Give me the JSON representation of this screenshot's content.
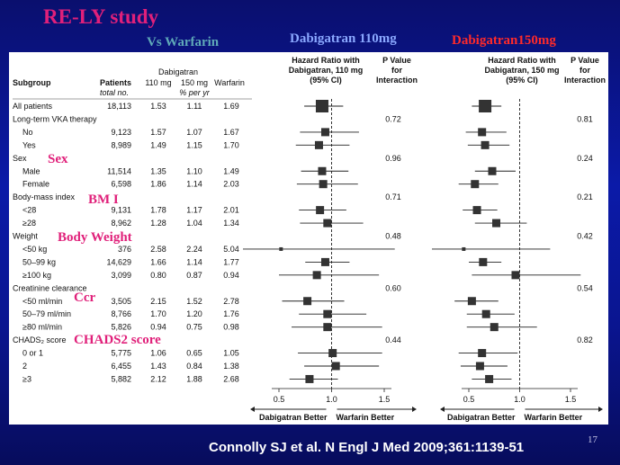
{
  "slide": {
    "title": "RE-LY study",
    "subtitle": "Vs Warfarin",
    "dose110_heading": "Dabigatran 110mg",
    "dose150_heading": "Dabigatran150mg",
    "citation": "Connolly SJ et al. N Engl J Med 2009;361:1139-51",
    "page_number": "17"
  },
  "colors": {
    "background": "#0b1aa8",
    "title": "#e0207a",
    "subtitle": "#5fa9b8",
    "dose110": "#8aa8ff",
    "dose150": "#ff2a2a"
  },
  "annotations": [
    "Sex",
    "BM I",
    "Body Weight",
    "Ccr",
    "CHADS2 score"
  ],
  "table": {
    "headers": {
      "subgroup": "Subgroup",
      "patients": "Patients",
      "total_no": "total no.",
      "dabigatran": "Dabigatran",
      "d110": "110 mg",
      "d150": "150 mg",
      "pct_per_yr": "% per yr",
      "warfarin": "Warfarin",
      "hr110": [
        "Hazard Ratio with",
        "Dabigatran, 110 mg",
        "(95% CI)"
      ],
      "p110": [
        "P Value",
        "for",
        "Interaction"
      ],
      "hr150": [
        "Hazard Ratio with",
        "Dabigatran, 150 mg",
        "(95% CI)"
      ],
      "p150": [
        "P Value",
        "for",
        "Interaction"
      ]
    },
    "rows": [
      {
        "label": "All patients",
        "indent": false,
        "patients": "18,113",
        "d110": "1.53",
        "d150": "1.11",
        "warfarin": "1.69"
      },
      {
        "label": "Long-term VKA therapy",
        "indent": false,
        "p110": "0.72",
        "p150": "0.81"
      },
      {
        "label": "No",
        "indent": true,
        "patients": "9,123",
        "d110": "1.57",
        "d150": "1.07",
        "warfarin": "1.67"
      },
      {
        "label": "Yes",
        "indent": true,
        "patients": "8,989",
        "d110": "1.49",
        "d150": "1.15",
        "warfarin": "1.70"
      },
      {
        "label": "Sex",
        "indent": false,
        "p110": "0.96",
        "p150": "0.24"
      },
      {
        "label": "Male",
        "indent": true,
        "patients": "11,514",
        "d110": "1.35",
        "d150": "1.10",
        "warfarin": "1.49"
      },
      {
        "label": "Female",
        "indent": true,
        "patients": "6,598",
        "d110": "1.86",
        "d150": "1.14",
        "warfarin": "2.03"
      },
      {
        "label": "Body-mass index",
        "indent": false,
        "p110": "0.71",
        "p150": "0.21"
      },
      {
        "label": "<28",
        "indent": true,
        "patients": "9,131",
        "d110": "1.78",
        "d150": "1.17",
        "warfarin": "2.01"
      },
      {
        "label": "≥28",
        "indent": true,
        "patients": "8,962",
        "d110": "1.28",
        "d150": "1.04",
        "warfarin": "1.34"
      },
      {
        "label": "Weight",
        "indent": false,
        "p110": "0.48",
        "p150": "0.42"
      },
      {
        "label": "<50 kg",
        "indent": true,
        "patients": "376",
        "d110": "2.58",
        "d150": "2.24",
        "warfarin": "5.04"
      },
      {
        "label": "50–99 kg",
        "indent": true,
        "patients": "14,629",
        "d110": "1.66",
        "d150": "1.14",
        "warfarin": "1.77"
      },
      {
        "label": "≥100 kg",
        "indent": true,
        "patients": "3,099",
        "d110": "0.80",
        "d150": "0.87",
        "warfarin": "0.94"
      },
      {
        "label": "Creatinine clearance",
        "indent": false,
        "p110": "0.60",
        "p150": "0.54"
      },
      {
        "label": "<50 ml/min",
        "indent": true,
        "patients": "3,505",
        "d110": "2.15",
        "d150": "1.52",
        "warfarin": "2.78"
      },
      {
        "label": "50–79 ml/min",
        "indent": true,
        "patients": "8,766",
        "d110": "1.70",
        "d150": "1.20",
        "warfarin": "1.76"
      },
      {
        "label": "≥80 ml/min",
        "indent": true,
        "patients": "5,826",
        "d110": "0.94",
        "d150": "0.75",
        "warfarin": "0.98"
      },
      {
        "label": "CHADS₂ score",
        "indent": false,
        "p110": "0.44",
        "p150": "0.82"
      },
      {
        "label": "0 or 1",
        "indent": true,
        "patients": "5,775",
        "d110": "1.06",
        "d150": "0.65",
        "warfarin": "1.05"
      },
      {
        "label": "2",
        "indent": true,
        "patients": "6,455",
        "d110": "1.43",
        "d150": "0.84",
        "warfarin": "1.38"
      },
      {
        "label": "≥3",
        "indent": true,
        "patients": "5,882",
        "d110": "2.12",
        "d150": "1.88",
        "warfarin": "2.68"
      }
    ]
  },
  "chart_data": [
    {
      "type": "scatter",
      "title": "Hazard Ratio with Dabigatran, 110 mg (95% CI)",
      "xlabel_left": "Dabigatran Better",
      "xlabel_right": "Warfarin Better",
      "xlim": [
        0.4,
        1.6
      ],
      "xticks": [
        0.5,
        1.0,
        1.5
      ],
      "xtick_labels": [
        "0.5",
        "1.0",
        "1.5"
      ],
      "reference_line": 1.0,
      "points": [
        {
          "row": 0,
          "hr": 0.91,
          "lo": 0.74,
          "hi": 1.11,
          "size": "large"
        },
        {
          "row": 2,
          "hr": 0.94,
          "lo": 0.7,
          "hi": 1.26,
          "size": "medium"
        },
        {
          "row": 3,
          "hr": 0.88,
          "lo": 0.66,
          "hi": 1.17,
          "size": "medium"
        },
        {
          "row": 5,
          "hr": 0.91,
          "lo": 0.71,
          "hi": 1.16,
          "size": "medium"
        },
        {
          "row": 6,
          "hr": 0.92,
          "lo": 0.67,
          "hi": 1.25,
          "size": "medium"
        },
        {
          "row": 8,
          "hr": 0.89,
          "lo": 0.69,
          "hi": 1.14,
          "size": "medium"
        },
        {
          "row": 9,
          "hr": 0.96,
          "lo": 0.7,
          "hi": 1.3,
          "size": "medium"
        },
        {
          "row": 11,
          "hr": 0.52,
          "lo": 0.1,
          "hi": 1.6,
          "size": "small"
        },
        {
          "row": 12,
          "hr": 0.94,
          "lo": 0.75,
          "hi": 1.17,
          "size": "medium"
        },
        {
          "row": 13,
          "hr": 0.86,
          "lo": 0.5,
          "hi": 1.45,
          "size": "medium"
        },
        {
          "row": 15,
          "hr": 0.77,
          "lo": 0.53,
          "hi": 1.12,
          "size": "medium"
        },
        {
          "row": 16,
          "hr": 0.96,
          "lo": 0.69,
          "hi": 1.33,
          "size": "medium"
        },
        {
          "row": 17,
          "hr": 0.96,
          "lo": 0.62,
          "hi": 1.48,
          "size": "medium"
        },
        {
          "row": 19,
          "hr": 1.01,
          "lo": 0.68,
          "hi": 1.48,
          "size": "medium"
        },
        {
          "row": 20,
          "hr": 1.04,
          "lo": 0.74,
          "hi": 1.45,
          "size": "medium"
        },
        {
          "row": 21,
          "hr": 0.79,
          "lo": 0.6,
          "hi": 1.06,
          "size": "medium"
        }
      ]
    },
    {
      "type": "scatter",
      "title": "Hazard Ratio with Dabigatran, 150 mg (95% CI)",
      "xlabel_left": "Dabigatran Better",
      "xlabel_right": "Warfarin Better",
      "xlim": [
        0.4,
        1.6
      ],
      "xticks": [
        0.5,
        1.0,
        1.5
      ],
      "xtick_labels": [
        "0.5",
        "1.0",
        "1.5"
      ],
      "reference_line": 1.0,
      "points": [
        {
          "row": 0,
          "hr": 0.66,
          "lo": 0.53,
          "hi": 0.82,
          "size": "large"
        },
        {
          "row": 2,
          "hr": 0.63,
          "lo": 0.47,
          "hi": 0.87,
          "size": "medium"
        },
        {
          "row": 3,
          "hr": 0.66,
          "lo": 0.49,
          "hi": 0.9,
          "size": "medium"
        },
        {
          "row": 5,
          "hr": 0.73,
          "lo": 0.56,
          "hi": 0.96,
          "size": "medium"
        },
        {
          "row": 6,
          "hr": 0.56,
          "lo": 0.4,
          "hi": 0.79,
          "size": "medium"
        },
        {
          "row": 8,
          "hr": 0.58,
          "lo": 0.44,
          "hi": 0.78,
          "size": "medium"
        },
        {
          "row": 9,
          "hr": 0.77,
          "lo": 0.56,
          "hi": 1.07,
          "size": "medium"
        },
        {
          "row": 11,
          "hr": 0.45,
          "lo": 0.1,
          "hi": 1.3,
          "size": "small"
        },
        {
          "row": 12,
          "hr": 0.64,
          "lo": 0.5,
          "hi": 0.82,
          "size": "medium"
        },
        {
          "row": 13,
          "hr": 0.96,
          "lo": 0.53,
          "hi": 1.6,
          "size": "medium"
        },
        {
          "row": 15,
          "hr": 0.53,
          "lo": 0.36,
          "hi": 0.79,
          "size": "medium"
        },
        {
          "row": 16,
          "hr": 0.67,
          "lo": 0.48,
          "hi": 0.95,
          "size": "medium"
        },
        {
          "row": 17,
          "hr": 0.75,
          "lo": 0.48,
          "hi": 1.17,
          "size": "medium"
        },
        {
          "row": 19,
          "hr": 0.63,
          "lo": 0.4,
          "hi": 0.98,
          "size": "medium"
        },
        {
          "row": 20,
          "hr": 0.61,
          "lo": 0.42,
          "hi": 0.88,
          "size": "medium"
        },
        {
          "row": 21,
          "hr": 0.7,
          "lo": 0.53,
          "hi": 0.92,
          "size": "medium"
        }
      ]
    }
  ]
}
